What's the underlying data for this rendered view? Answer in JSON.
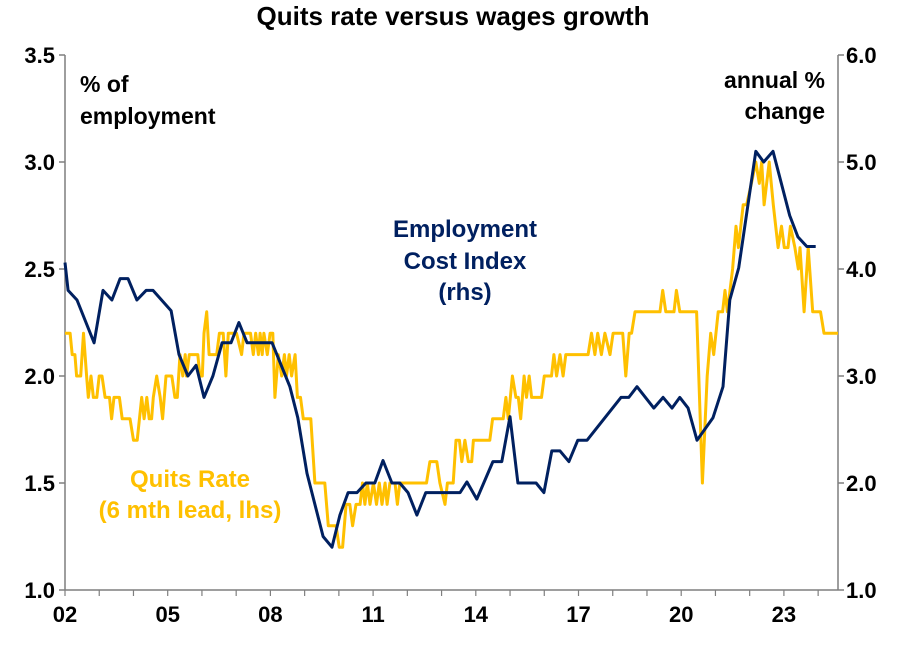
{
  "chart_data": {
    "type": "line",
    "title": "Quits rate versus wages growth",
    "left_axis": {
      "label_lines": [
        "% of",
        "employment"
      ],
      "ylim": [
        1.0,
        3.5
      ],
      "ticks": [
        "1.0",
        "1.5",
        "2.0",
        "2.5",
        "3.0",
        "3.5"
      ]
    },
    "right_axis": {
      "label_lines": [
        "annual %",
        "change"
      ],
      "ylim": [
        1.0,
        6.0
      ],
      "ticks": [
        "1.0",
        "2.0",
        "3.0",
        "4.0",
        "5.0",
        "6.0"
      ]
    },
    "x_axis": {
      "xlim": [
        2002,
        2024.58
      ],
      "tick_labels": [
        {
          "year": 2002,
          "label": "02"
        },
        {
          "year": 2005,
          "label": "05"
        },
        {
          "year": 2008,
          "label": "08"
        },
        {
          "year": 2011,
          "label": "11"
        },
        {
          "year": 2014,
          "label": "14"
        },
        {
          "year": 2017,
          "label": "17"
        },
        {
          "year": 2020,
          "label": "20"
        },
        {
          "year": 2023,
          "label": "23"
        }
      ]
    },
    "grid": false,
    "series": [
      {
        "name": "Quits Rate (6 mth lead, lhs)",
        "label_lines": [
          "Quits Rate",
          "(6 mth lead, lhs)"
        ],
        "axis": "left",
        "color": "#FFC000",
        "points": [
          [
            2002.0,
            2.2
          ],
          [
            2002.15,
            2.2
          ],
          [
            2002.21,
            2.1
          ],
          [
            2002.29,
            2.1
          ],
          [
            2002.34,
            2.0
          ],
          [
            2002.46,
            2.0
          ],
          [
            2002.54,
            2.2
          ],
          [
            2002.63,
            2.0
          ],
          [
            2002.68,
            1.9
          ],
          [
            2002.76,
            2.0
          ],
          [
            2002.83,
            1.9
          ],
          [
            2002.93,
            1.9
          ],
          [
            2003.0,
            2.0
          ],
          [
            2003.08,
            2.0
          ],
          [
            2003.17,
            1.9
          ],
          [
            2003.3,
            1.9
          ],
          [
            2003.36,
            1.8
          ],
          [
            2003.43,
            1.9
          ],
          [
            2003.59,
            1.9
          ],
          [
            2003.67,
            1.8
          ],
          [
            2003.9,
            1.8
          ],
          [
            2004.0,
            1.7
          ],
          [
            2004.11,
            1.7
          ],
          [
            2004.24,
            1.9
          ],
          [
            2004.31,
            1.8
          ],
          [
            2004.39,
            1.9
          ],
          [
            2004.46,
            1.8
          ],
          [
            2004.53,
            1.8
          ],
          [
            2004.58,
            1.9
          ],
          [
            2004.68,
            2.0
          ],
          [
            2004.78,
            1.9
          ],
          [
            2004.85,
            1.8
          ],
          [
            2004.95,
            2.0
          ],
          [
            2005.12,
            2.0
          ],
          [
            2005.21,
            1.9
          ],
          [
            2005.28,
            1.9
          ],
          [
            2005.36,
            2.1
          ],
          [
            2005.44,
            2.0
          ],
          [
            2005.51,
            2.1
          ],
          [
            2005.55,
            2.0
          ],
          [
            2005.63,
            2.1
          ],
          [
            2005.75,
            2.1
          ],
          [
            2005.88,
            2.1
          ],
          [
            2005.94,
            2.0
          ],
          [
            2006.01,
            2.0
          ],
          [
            2006.06,
            2.2
          ],
          [
            2006.14,
            2.3
          ],
          [
            2006.21,
            2.1
          ],
          [
            2006.33,
            2.1
          ],
          [
            2006.43,
            2.1
          ],
          [
            2006.51,
            2.2
          ],
          [
            2006.62,
            2.2
          ],
          [
            2006.7,
            2.0
          ],
          [
            2006.77,
            2.2
          ],
          [
            2007.01,
            2.2
          ],
          [
            2007.16,
            2.1
          ],
          [
            2007.23,
            2.2
          ],
          [
            2007.42,
            2.2
          ],
          [
            2007.5,
            2.1
          ],
          [
            2007.57,
            2.2
          ],
          [
            2007.65,
            2.1
          ],
          [
            2007.7,
            2.2
          ],
          [
            2007.76,
            2.1
          ],
          [
            2007.81,
            2.2
          ],
          [
            2007.91,
            2.1
          ],
          [
            2007.99,
            2.2
          ],
          [
            2008.07,
            2.2
          ],
          [
            2008.13,
            1.9
          ],
          [
            2008.23,
            2.1
          ],
          [
            2008.33,
            2.0
          ],
          [
            2008.41,
            2.1
          ],
          [
            2008.47,
            2.0
          ],
          [
            2008.55,
            2.1
          ],
          [
            2008.62,
            2.0
          ],
          [
            2008.72,
            2.1
          ],
          [
            2008.79,
            1.9
          ],
          [
            2008.88,
            1.9
          ],
          [
            2008.96,
            1.8
          ],
          [
            2009.08,
            1.8
          ],
          [
            2009.18,
            1.8
          ],
          [
            2009.3,
            1.5
          ],
          [
            2009.59,
            1.5
          ],
          [
            2009.69,
            1.3
          ],
          [
            2009.92,
            1.3
          ],
          [
            2010.01,
            1.2
          ],
          [
            2010.11,
            1.2
          ],
          [
            2010.21,
            1.4
          ],
          [
            2010.32,
            1.4
          ],
          [
            2010.4,
            1.3
          ],
          [
            2010.5,
            1.4
          ],
          [
            2010.62,
            1.4
          ],
          [
            2010.69,
            1.5
          ],
          [
            2010.76,
            1.4
          ],
          [
            2010.83,
            1.5
          ],
          [
            2010.91,
            1.4
          ],
          [
            2011.01,
            1.5
          ],
          [
            2011.1,
            1.4
          ],
          [
            2011.18,
            1.5
          ],
          [
            2011.26,
            1.4
          ],
          [
            2011.35,
            1.5
          ],
          [
            2011.41,
            1.4
          ],
          [
            2011.49,
            1.5
          ],
          [
            2011.64,
            1.5
          ],
          [
            2011.71,
            1.4
          ],
          [
            2011.78,
            1.5
          ],
          [
            2012.56,
            1.5
          ],
          [
            2012.66,
            1.6
          ],
          [
            2012.86,
            1.6
          ],
          [
            2012.95,
            1.5
          ],
          [
            2013.1,
            1.4
          ],
          [
            2013.17,
            1.5
          ],
          [
            2013.34,
            1.5
          ],
          [
            2013.42,
            1.7
          ],
          [
            2013.52,
            1.7
          ],
          [
            2013.59,
            1.6
          ],
          [
            2013.68,
            1.7
          ],
          [
            2013.78,
            1.6
          ],
          [
            2013.88,
            1.6
          ],
          [
            2013.93,
            1.7
          ],
          [
            2014.41,
            1.7
          ],
          [
            2014.49,
            1.8
          ],
          [
            2014.8,
            1.8
          ],
          [
            2014.88,
            1.9
          ],
          [
            2014.95,
            1.8
          ],
          [
            2015.07,
            2.0
          ],
          [
            2015.17,
            1.9
          ],
          [
            2015.24,
            1.9
          ],
          [
            2015.31,
            1.8
          ],
          [
            2015.41,
            2.0
          ],
          [
            2015.48,
            1.9
          ],
          [
            2015.56,
            2.0
          ],
          [
            2015.63,
            1.9
          ],
          [
            2015.92,
            1.9
          ],
          [
            2016.0,
            2.0
          ],
          [
            2016.21,
            2.0
          ],
          [
            2016.28,
            2.1
          ],
          [
            2016.36,
            2.0
          ],
          [
            2016.46,
            2.1
          ],
          [
            2016.55,
            2.0
          ],
          [
            2016.63,
            2.1
          ],
          [
            2017.28,
            2.1
          ],
          [
            2017.38,
            2.2
          ],
          [
            2017.48,
            2.1
          ],
          [
            2017.56,
            2.2
          ],
          [
            2017.67,
            2.1
          ],
          [
            2017.77,
            2.2
          ],
          [
            2017.92,
            2.1
          ],
          [
            2018.01,
            2.2
          ],
          [
            2018.29,
            2.2
          ],
          [
            2018.38,
            2.0
          ],
          [
            2018.48,
            2.2
          ],
          [
            2018.55,
            2.2
          ],
          [
            2018.65,
            2.3
          ],
          [
            2019.38,
            2.3
          ],
          [
            2019.46,
            2.4
          ],
          [
            2019.55,
            2.3
          ],
          [
            2019.79,
            2.3
          ],
          [
            2019.86,
            2.4
          ],
          [
            2019.96,
            2.3
          ],
          [
            2020.45,
            2.3
          ],
          [
            2020.62,
            1.5
          ],
          [
            2020.76,
            2.0
          ],
          [
            2020.86,
            2.2
          ],
          [
            2020.95,
            2.1
          ],
          [
            2021.08,
            2.3
          ],
          [
            2021.21,
            2.3
          ],
          [
            2021.28,
            2.4
          ],
          [
            2021.35,
            2.3
          ],
          [
            2021.5,
            2.5
          ],
          [
            2021.6,
            2.7
          ],
          [
            2021.67,
            2.6
          ],
          [
            2021.81,
            2.8
          ],
          [
            2021.91,
            2.8
          ],
          [
            2022.05,
            2.9
          ],
          [
            2022.18,
            3.0
          ],
          [
            2022.28,
            2.9
          ],
          [
            2022.35,
            3.0
          ],
          [
            2022.42,
            2.8
          ],
          [
            2022.57,
            3.0
          ],
          [
            2022.69,
            2.8
          ],
          [
            2022.83,
            2.6
          ],
          [
            2022.93,
            2.7
          ],
          [
            2023.01,
            2.6
          ],
          [
            2023.12,
            2.6
          ],
          [
            2023.19,
            2.7
          ],
          [
            2023.32,
            2.6
          ],
          [
            2023.42,
            2.5
          ],
          [
            2023.47,
            2.6
          ],
          [
            2023.59,
            2.3
          ],
          [
            2023.71,
            2.6
          ],
          [
            2023.84,
            2.3
          ],
          [
            2024.07,
            2.3
          ],
          [
            2024.17,
            2.2
          ],
          [
            2024.58,
            2.2
          ]
        ]
      },
      {
        "name": "Employment Cost Index (rhs)",
        "label_lines": [
          "Employment",
          "Cost Index",
          "(rhs)"
        ],
        "axis": "right",
        "color": "#002060",
        "points": [
          [
            2002.0,
            4.06
          ],
          [
            2002.09,
            3.8
          ],
          [
            2002.35,
            3.71
          ],
          [
            2002.85,
            3.31
          ],
          [
            2003.11,
            3.8
          ],
          [
            2003.37,
            3.71
          ],
          [
            2003.61,
            3.91
          ],
          [
            2003.84,
            3.91
          ],
          [
            2004.1,
            3.71
          ],
          [
            2004.37,
            3.8
          ],
          [
            2004.57,
            3.8
          ],
          [
            2005.1,
            3.61
          ],
          [
            2005.33,
            3.2
          ],
          [
            2005.59,
            3.0
          ],
          [
            2005.83,
            3.1
          ],
          [
            2006.06,
            2.8
          ],
          [
            2006.32,
            3.0
          ],
          [
            2006.59,
            3.31
          ],
          [
            2006.85,
            3.31
          ],
          [
            2007.08,
            3.5
          ],
          [
            2007.32,
            3.31
          ],
          [
            2008.05,
            3.31
          ],
          [
            2008.57,
            2.9
          ],
          [
            2008.8,
            2.61
          ],
          [
            2009.07,
            2.09
          ],
          [
            2009.54,
            1.5
          ],
          [
            2009.8,
            1.4
          ],
          [
            2010.03,
            1.7
          ],
          [
            2010.27,
            1.91
          ],
          [
            2010.53,
            1.91
          ],
          [
            2010.79,
            2.0
          ],
          [
            2011.05,
            2.0
          ],
          [
            2011.29,
            2.21
          ],
          [
            2011.55,
            2.0
          ],
          [
            2011.78,
            2.0
          ],
          [
            2012.02,
            1.91
          ],
          [
            2012.28,
            1.7
          ],
          [
            2012.54,
            1.91
          ],
          [
            2013.54,
            1.91
          ],
          [
            2013.74,
            2.01
          ],
          [
            2014.03,
            1.85
          ],
          [
            2014.5,
            2.2
          ],
          [
            2014.76,
            2.2
          ],
          [
            2015.0,
            2.62
          ],
          [
            2015.23,
            2.0
          ],
          [
            2015.76,
            2.0
          ],
          [
            2015.99,
            1.91
          ],
          [
            2016.22,
            2.3
          ],
          [
            2016.46,
            2.3
          ],
          [
            2016.72,
            2.2
          ],
          [
            2016.98,
            2.4
          ],
          [
            2017.25,
            2.4
          ],
          [
            2018.24,
            2.8
          ],
          [
            2018.47,
            2.8
          ],
          [
            2018.71,
            2.9
          ],
          [
            2019.2,
            2.7
          ],
          [
            2019.47,
            2.8
          ],
          [
            2019.73,
            2.7
          ],
          [
            2019.96,
            2.8
          ],
          [
            2020.2,
            2.7
          ],
          [
            2020.46,
            2.4
          ],
          [
            2020.93,
            2.61
          ],
          [
            2021.22,
            2.9
          ],
          [
            2021.42,
            3.71
          ],
          [
            2021.68,
            4.01
          ],
          [
            2022.18,
            5.1
          ],
          [
            2022.41,
            5.0
          ],
          [
            2022.68,
            5.1
          ],
          [
            2023.17,
            4.5
          ],
          [
            2023.41,
            4.3
          ],
          [
            2023.67,
            4.21
          ],
          [
            2023.93,
            4.21
          ]
        ]
      }
    ]
  }
}
